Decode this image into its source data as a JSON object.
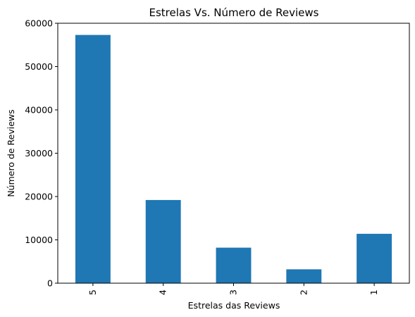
{
  "chart_data": {
    "type": "bar",
    "title": "Estrelas Vs. Número de Reviews",
    "xlabel": "Estrelas das Reviews",
    "ylabel": "Número de Reviews",
    "categories": [
      "5",
      "4",
      "3",
      "2",
      "1"
    ],
    "values": [
      57300,
      19200,
      8200,
      3200,
      11400
    ],
    "ylim": [
      0,
      60000
    ],
    "yticks": [
      0,
      10000,
      20000,
      30000,
      40000,
      50000,
      60000
    ],
    "ytick_labels": [
      "0",
      "10000",
      "20000",
      "30000",
      "40000",
      "50000",
      "60000"
    ],
    "grid": false,
    "bar_color": "#1f77b4"
  }
}
